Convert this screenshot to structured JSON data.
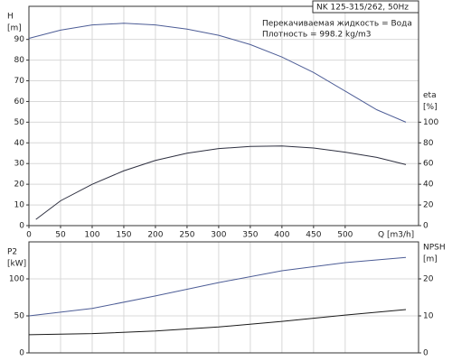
{
  "chart_data": [
    {
      "type": "line",
      "annotations": [
        "NK 125-315/262, 50Hz",
        "Перекачиваемая жидкость = Вода",
        "Плотность = 998.2 kg/m3"
      ],
      "ylabel": "H",
      "yunit": "[m]",
      "y2label": "eta",
      "y2unit": "[%]",
      "xlabel": "Q [m3/h]",
      "xlim": [
        0,
        616
      ],
      "xticks": [
        0,
        50,
        100,
        150,
        200,
        250,
        300,
        350,
        400,
        450,
        500
      ],
      "ylim": [
        0,
        106
      ],
      "yticks": [
        0,
        10,
        20,
        30,
        40,
        50,
        60,
        70,
        80,
        90
      ],
      "y2lim": [
        0,
        212
      ],
      "y2ticks": [
        0,
        20,
        40,
        60,
        80,
        100
      ],
      "grid": true,
      "series": [
        {
          "color": "#4d5d96",
          "x": [
            0,
            50,
            100,
            150,
            200,
            250,
            300,
            350,
            400,
            450,
            500,
            550,
            596
          ],
          "values": [
            90.5,
            94.5,
            97,
            97.8,
            97,
            95,
            92,
            87.5,
            81.5,
            74,
            65,
            56,
            50
          ]
        },
        {
          "color": "#2e3040",
          "axis": "y2",
          "x": [
            11,
            50,
            100,
            150,
            200,
            250,
            300,
            350,
            400,
            450,
            500,
            550,
            596
          ],
          "values": [
            6,
            24,
            40,
            53,
            63,
            70,
            74.5,
            76.5,
            77,
            75,
            71,
            66,
            59
          ]
        }
      ]
    },
    {
      "type": "line",
      "ylabel": "P2",
      "yunit": "[kW]",
      "y2label": "NPSH",
      "y2unit": "[m]",
      "xlim": [
        0,
        616
      ],
      "ylim": [
        0,
        150
      ],
      "yticks": [
        0,
        50,
        100
      ],
      "y2lim": [
        0,
        30
      ],
      "y2ticks": [
        0,
        10,
        20
      ],
      "grid": true,
      "series": [
        {
          "color": "#4d5d96",
          "x": [
            0,
            100,
            200,
            300,
            400,
            500,
            596
          ],
          "values": [
            50,
            60,
            77,
            95,
            111,
            122,
            129
          ]
        },
        {
          "color": "#1a1a1a",
          "axis": "y2",
          "x": [
            0,
            100,
            200,
            300,
            400,
            500,
            596
          ],
          "values": [
            4.9,
            5.2,
            5.9,
            7.0,
            8.5,
            10.2,
            11.7
          ]
        }
      ]
    }
  ]
}
